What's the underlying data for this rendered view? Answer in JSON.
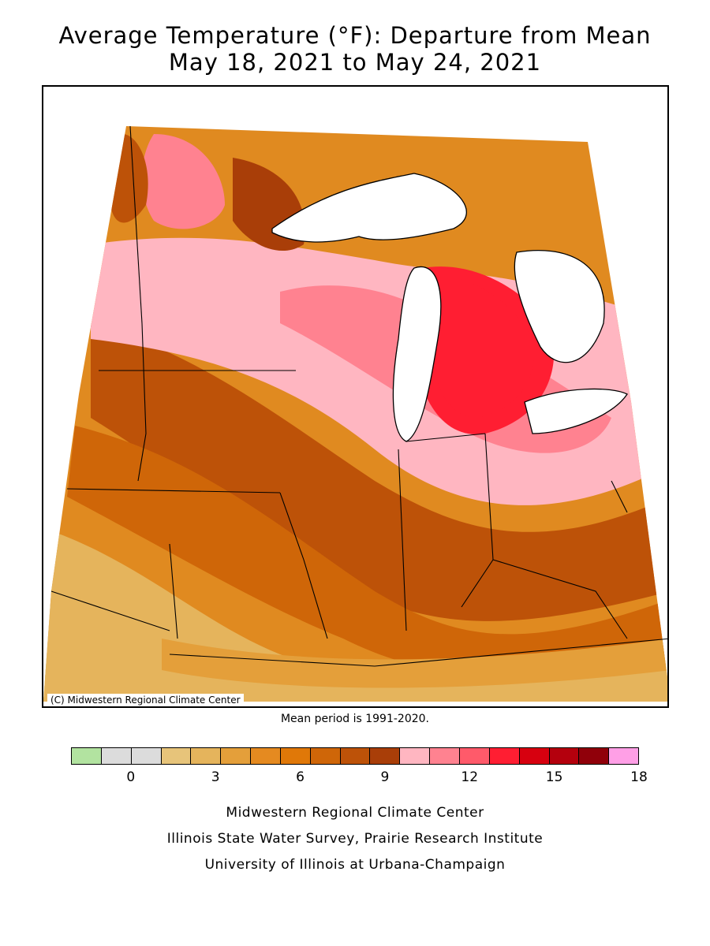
{
  "title": {
    "line1": "Average Temperature (°F): Departure from Mean",
    "line2": "May 18, 2021 to May 24, 2021"
  },
  "map": {
    "credit": "(C) Midwestern Regional Climate Center",
    "colors": {
      "land_default": "#d7700d",
      "lake": "#ffffff",
      "state_border": "#000000"
    }
  },
  "mean_note": "Mean period is 1991-2020.",
  "legend": {
    "swatch_colors": [
      "#b2e3a0",
      "#dcdcdc",
      "#dcdcdc",
      "#e7c47a",
      "#e5b45c",
      "#e49f3a",
      "#e58a20",
      "#e07808",
      "#cf6608",
      "#bd5208",
      "#a93e08",
      "#ffb6c1",
      "#ff8290",
      "#ff5a6a",
      "#ff1e32",
      "#d7000f",
      "#b4000d",
      "#90000a",
      "#ff9fe6"
    ],
    "tick_values": [
      0,
      3,
      6,
      9,
      12,
      15,
      18
    ],
    "tick_labels": [
      "0",
      "3",
      "6",
      "9",
      "12",
      "15",
      "18"
    ]
  },
  "footer": {
    "line1": "Midwestern Regional Climate Center",
    "line2": "Illinois State Water Survey, Prairie Research Institute",
    "line3": "University of Illinois at Urbana-Champaign"
  }
}
